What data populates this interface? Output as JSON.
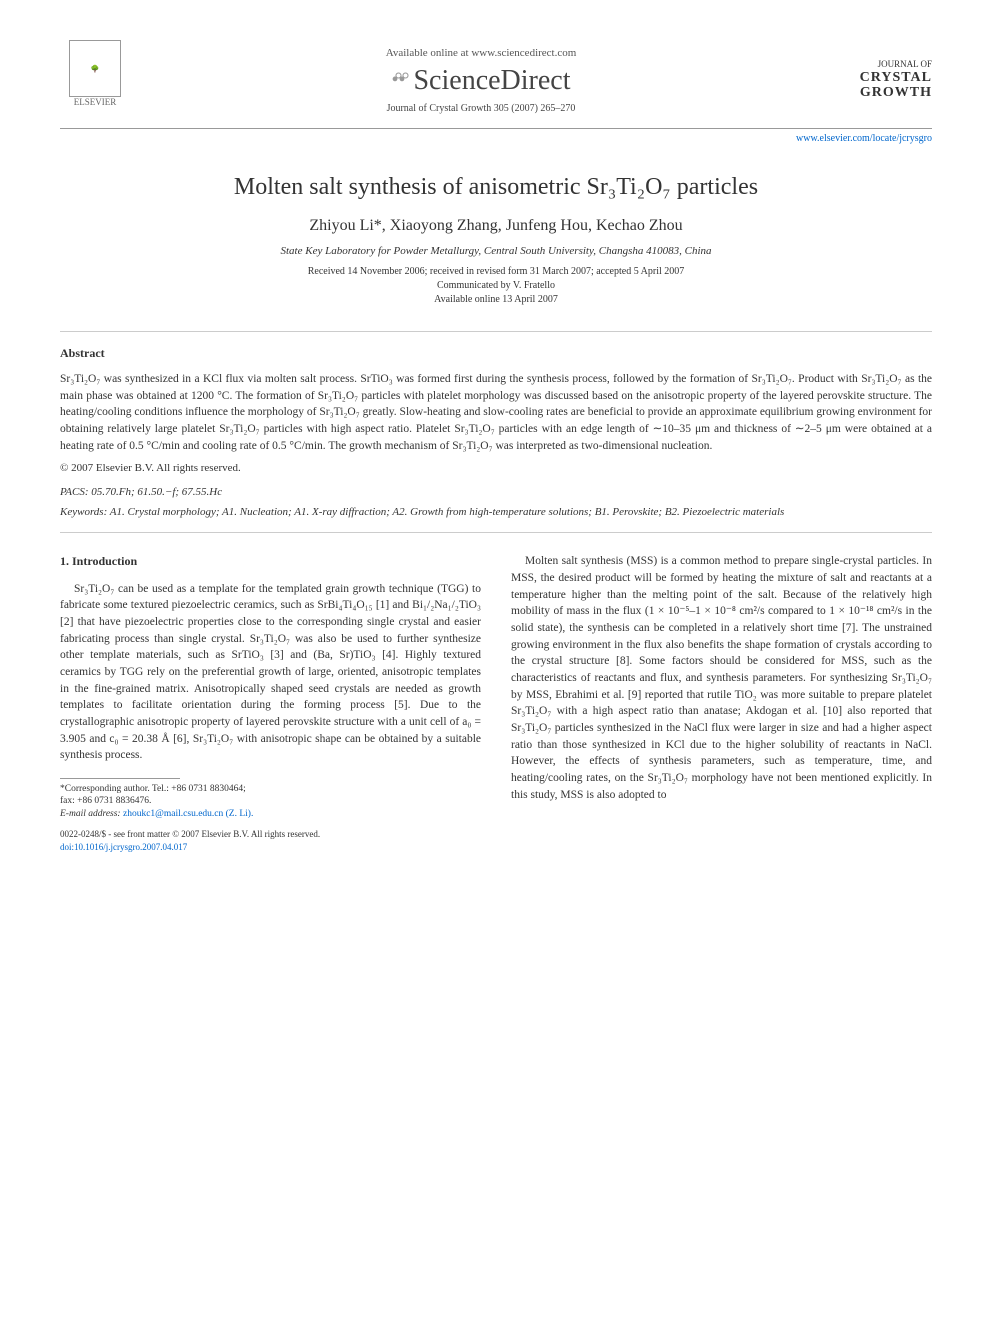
{
  "header": {
    "available": "Available online at www.sciencedirect.com",
    "brand": "ScienceDirect",
    "journal_citation": "Journal of Crystal Growth 305 (2007) 265–270",
    "publisher_name": "ELSEVIER",
    "journal_logo_prefix": "JOURNAL OF",
    "journal_logo_l1": "CRYSTAL",
    "journal_logo_l2": "GROWTH",
    "url": "www.elsevier.com/locate/jcrysgro"
  },
  "title": "Molten salt synthesis of anisometric Sr₃Ti₂O₇ particles",
  "authors": "Zhiyou Li*, Xiaoyong Zhang, Junfeng Hou, Kechao Zhou",
  "affiliation": "State Key Laboratory for Powder Metallurgy, Central South University, Changsha 410083, China",
  "dates": {
    "l1": "Received 14 November 2006; received in revised form 31 March 2007; accepted 5 April 2007",
    "l2": "Communicated by V. Fratello",
    "l3": "Available online 13 April 2007"
  },
  "abstract": {
    "heading": "Abstract",
    "body": "Sr₃Ti₂O₇ was synthesized in a KCl flux via molten salt process. SrTiO₃ was formed first during the synthesis process, followed by the formation of Sr₃Ti₂O₇. Product with Sr₃Ti₂O₇ as the main phase was obtained at 1200 °C. The formation of Sr₃Ti₂O₇ particles with platelet morphology was discussed based on the anisotropic property of the layered perovskite structure. The heating/cooling conditions influence the morphology of Sr₃Ti₂O₇ greatly. Slow-heating and slow-cooling rates are beneficial to provide an approximate equilibrium growing environment for obtaining relatively large platelet Sr₃Ti₂O₇ particles with high aspect ratio. Platelet Sr₃Ti₂O₇ particles with an edge length of ∼10–35 μm and thickness of ∼2–5 μm were obtained at a heating rate of 0.5 °C/min and cooling rate of 0.5 °C/min. The growth mechanism of Sr₃Ti₂O₇ was interpreted as two-dimensional nucleation.",
    "copyright": "© 2007 Elsevier B.V. All rights reserved."
  },
  "pacs": "PACS: 05.70.Fh; 61.50.−f; 67.55.Hc",
  "keywords": "Keywords: A1. Crystal morphology; A1. Nucleation; A1. X-ray diffraction; A2. Growth from high-temperature solutions; B1. Perovskite; B2. Piezoelectric materials",
  "intro": {
    "heading": "1. Introduction",
    "col1": "Sr₃Ti₂O₇ can be used as a template for the templated grain growth technique (TGG) to fabricate some textured piezoelectric ceramics, such as SrBi₄Ti₄O₁₅ [1] and Bi₁/₂Na₁/₂TiO₃ [2] that have piezoelectric properties close to the corresponding single crystal and easier fabricating process than single crystal. Sr₃Ti₂O₇ was also be used to further synthesize other template materials, such as SrTiO₃ [3] and (Ba, Sr)TiO₃ [4]. Highly textured ceramics by TGG rely on the preferential growth of large, oriented, anisotropic templates in the fine-grained matrix. Anisotropically shaped seed crystals are needed as growth templates to facilitate orientation during the forming process [5]. Due to the crystallographic anisotropic property of layered perovskite structure with a unit cell of a₀ = 3.905 and c₀ = 20.38 Å [6], Sr₃Ti₂O₇ with anisotropic shape can be obtained by a suitable synthesis process.",
    "col2": "Molten salt synthesis (MSS) is a common method to prepare single-crystal particles. In MSS, the desired product will be formed by heating the mixture of salt and reactants at a temperature higher than the melting point of the salt. Because of the relatively high mobility of mass in the flux (1 × 10⁻⁵–1 × 10⁻⁸ cm²/s compared to 1 × 10⁻¹⁸ cm²/s in the solid state), the synthesis can be completed in a relatively short time [7]. The unstrained growing environment in the flux also benefits the shape formation of crystals according to the crystal structure [8]. Some factors should be considered for MSS, such as the characteristics of reactants and flux, and synthesis parameters. For synthesizing Sr₃Ti₂O₇ by MSS, Ebrahimi et al. [9] reported that rutile TiO₂ was more suitable to prepare platelet Sr₃Ti₂O₇ with a high aspect ratio than anatase; Akdogan et al. [10] also reported that Sr₃Ti₂O₇ particles synthesized in the NaCl flux were larger in size and had a higher aspect ratio than those synthesized in KCl due to the higher solubility of reactants in NaCl. However, the effects of synthesis parameters, such as temperature, time, and heating/cooling rates, on the Sr₃Ti₂O₇ morphology have not been mentioned explicitly. In this study, MSS is also adopted to"
  },
  "footnote": {
    "corr": "*Corresponding author. Tel.: +86 0731 8830464;",
    "fax": "fax: +86 0731 8836476.",
    "email_label": "E-mail address:",
    "email": "zhoukc1@mail.csu.edu.cn (Z. Li)."
  },
  "footer": {
    "issn": "0022-0248/$ - see front matter © 2007 Elsevier B.V. All rights reserved.",
    "doi": "doi:10.1016/j.jcrysgro.2007.04.017"
  },
  "refs": {
    "r1": "[1]",
    "r2": "[2]",
    "r3": "[3]",
    "r4": "[4]",
    "r5": "[5]",
    "r6": "[6]",
    "r7": "[7]",
    "r8": "[8]",
    "r9": "[9]",
    "r10": "[10]"
  },
  "colors": {
    "link": "#0066cc",
    "text": "#333333",
    "rule": "#999999"
  }
}
